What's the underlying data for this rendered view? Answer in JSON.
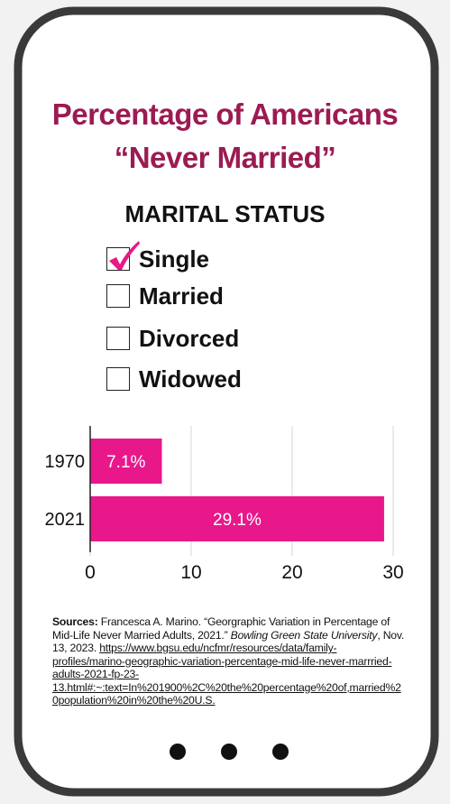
{
  "title_lines": [
    "Percentage of Americans",
    "“Never Married”"
  ],
  "form": {
    "heading": "MARITAL STATUS",
    "options": [
      {
        "label": "Single",
        "checked": true
      },
      {
        "label": "Married",
        "checked": false
      },
      {
        "label": "Divorced",
        "checked": false
      },
      {
        "label": "Widowed",
        "checked": false
      }
    ]
  },
  "chart_data": {
    "type": "bar",
    "orientation": "horizontal",
    "categories": [
      "1970",
      "2021"
    ],
    "values": [
      7.1,
      29.1
    ],
    "value_labels": [
      "7.1%",
      "29.1%"
    ],
    "color": "#e8178a",
    "xlim": [
      0,
      30
    ],
    "xticks": [
      0,
      10,
      20,
      30
    ],
    "grid": true
  },
  "sources": {
    "label": "Sources:",
    "text": " Francesca A. Marino. “Georgraphic Variation in Percentage of Mid-Life Never Married Adults, 2021.” ",
    "publisher": "Bowling Green State University",
    "date": ", Nov. 13, 2023. ",
    "url": "https://www.bgsu.edu/ncfmr/resources/data/family-profiles/marino-geographic-variation-percentage-mid-life-never-marrried-adults-2021-fp-23-13.html#:~:text=In%201900%2C%20the%20percentage%20of,married%20population%20in%20the%20U.S."
  }
}
